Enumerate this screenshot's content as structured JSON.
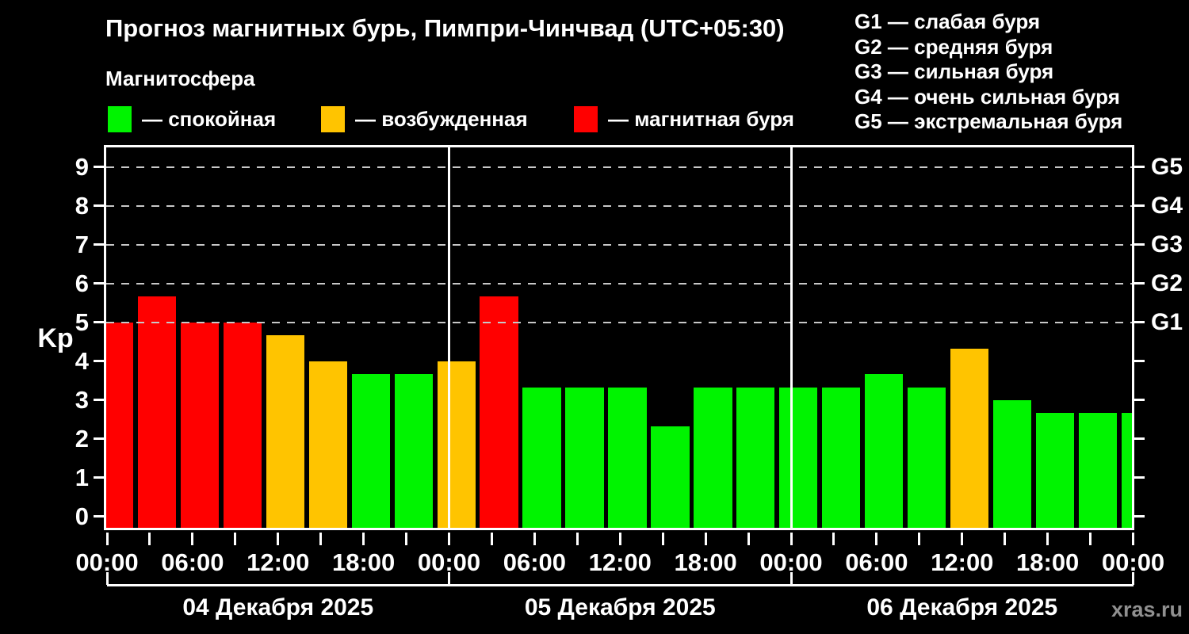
{
  "header": {
    "title": "Прогноз магнитных бурь, Пимпри-Чинчвад (UTC+05:30)",
    "subtitle": "Магнитосфера",
    "watermark": "xras.ru"
  },
  "legend": {
    "items": [
      {
        "status": "quiet",
        "label": "— спокойная",
        "color": "#00f400"
      },
      {
        "status": "unsettled",
        "label": "— возбужденная",
        "color": "#ffc400"
      },
      {
        "status": "storm",
        "label": "— магнитная буря",
        "color": "#ff0000"
      }
    ]
  },
  "g_legend": {
    "items": [
      "G1 — слабая буря",
      "G2 — средняя буря",
      "G3 — сильная буря",
      "G4 — очень сильная буря",
      "G5 — экстремальная буря"
    ]
  },
  "chart_data": {
    "type": "bar",
    "ylabel": "Kp",
    "ylim": [
      -0.36,
      9.55
    ],
    "yticks": [
      0,
      1,
      2,
      3,
      4,
      5,
      6,
      7,
      8,
      9
    ],
    "grid_levels": [
      5,
      6,
      7,
      8,
      9
    ],
    "right_axis_labels": [
      {
        "kp": 5,
        "label": "G1"
      },
      {
        "kp": 6,
        "label": "G2"
      },
      {
        "kp": 7,
        "label": "G3"
      },
      {
        "kp": 8,
        "label": "G4"
      },
      {
        "kp": 9,
        "label": "G5"
      }
    ],
    "x_tick_step_hours": 3,
    "x_label_step_hours": 6,
    "x_tick_labels": [
      "00:00",
      "06:00",
      "12:00",
      "18:00",
      "00:00",
      "06:00",
      "12:00",
      "18:00",
      "00:00",
      "06:00",
      "12:00",
      "18:00",
      "00:00"
    ],
    "days": [
      {
        "date": "04 Декабря 2025",
        "values": [
          5.0,
          5.67,
          5.0,
          5.0,
          4.67,
          4.0,
          3.67,
          3.67
        ]
      },
      {
        "date": "05 Декабря 2025",
        "values": [
          4.0,
          5.67,
          3.33,
          3.33,
          3.33,
          2.33,
          3.33,
          3.33
        ]
      },
      {
        "date": "06 Декабря 2025",
        "values": [
          3.33,
          3.33,
          3.67,
          3.33,
          4.33,
          3.0,
          2.67,
          2.67
        ]
      }
    ],
    "partial_next_value": 2.67,
    "colors": {
      "quiet": "#00f400",
      "unsettled": "#ffc400",
      "storm": "#ff0000"
    },
    "thresholds": {
      "unsettled_min": 4.0,
      "storm_min": 5.0
    },
    "legend_position": "top-left",
    "grid": "dashed-storm-levels-only",
    "background": "#000000"
  }
}
